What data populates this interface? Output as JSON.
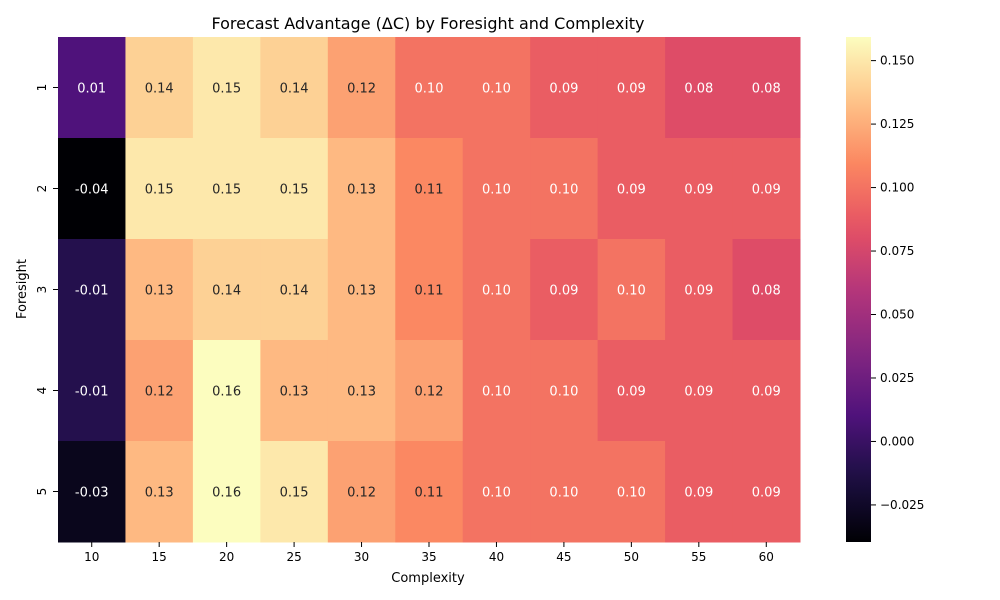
{
  "chart_data": {
    "type": "heatmap",
    "title": "Forecast Advantage (ΔC) by Foresight and Complexity",
    "xlabel": "Complexity",
    "ylabel": "Foresight",
    "x_categories": [
      "10",
      "15",
      "20",
      "25",
      "30",
      "35",
      "40",
      "45",
      "50",
      "55",
      "60"
    ],
    "y_categories": [
      "1",
      "2",
      "3",
      "4",
      "5"
    ],
    "values": [
      [
        0.01,
        0.14,
        0.15,
        0.14,
        0.12,
        0.1,
        0.1,
        0.09,
        0.09,
        0.08,
        0.08
      ],
      [
        -0.04,
        0.15,
        0.15,
        0.15,
        0.13,
        0.11,
        0.1,
        0.1,
        0.09,
        0.09,
        0.09
      ],
      [
        -0.01,
        0.13,
        0.14,
        0.14,
        0.13,
        0.11,
        0.1,
        0.09,
        0.1,
        0.09,
        0.08
      ],
      [
        -0.01,
        0.12,
        0.16,
        0.13,
        0.13,
        0.12,
        0.1,
        0.1,
        0.09,
        0.09,
        0.09
      ],
      [
        -0.03,
        0.13,
        0.16,
        0.15,
        0.12,
        0.11,
        0.1,
        0.1,
        0.1,
        0.09,
        0.09
      ]
    ],
    "labels": [
      [
        "0.01",
        "0.14",
        "0.15",
        "0.14",
        "0.12",
        "0.10",
        "0.10",
        "0.09",
        "0.09",
        "0.08",
        "0.08"
      ],
      [
        "-0.04",
        "0.15",
        "0.15",
        "0.15",
        "0.13",
        "0.11",
        "0.10",
        "0.10",
        "0.09",
        "0.09",
        "0.09"
      ],
      [
        "-0.01",
        "0.13",
        "0.14",
        "0.14",
        "0.13",
        "0.11",
        "0.10",
        "0.09",
        "0.10",
        "0.09",
        "0.08"
      ],
      [
        "-0.01",
        "0.12",
        "0.16",
        "0.13",
        "0.13",
        "0.12",
        "0.10",
        "0.10",
        "0.09",
        "0.09",
        "0.09"
      ],
      [
        "-0.03",
        "0.13",
        "0.16",
        "0.15",
        "0.12",
        "0.11",
        "0.10",
        "0.10",
        "0.10",
        "0.09",
        "0.09"
      ]
    ],
    "colormap": "magma",
    "color_range": [
      -0.0396,
      0.1593
    ],
    "colorbar_ticks": [
      -0.025,
      0.0,
      0.025,
      0.05,
      0.075,
      0.1,
      0.125,
      0.15
    ],
    "colorbar_tick_labels": [
      "−0.025",
      "0.000",
      "0.025",
      "0.050",
      "0.075",
      "0.100",
      "0.125",
      "0.150"
    ],
    "grid": false,
    "colorbar_position": "right"
  }
}
